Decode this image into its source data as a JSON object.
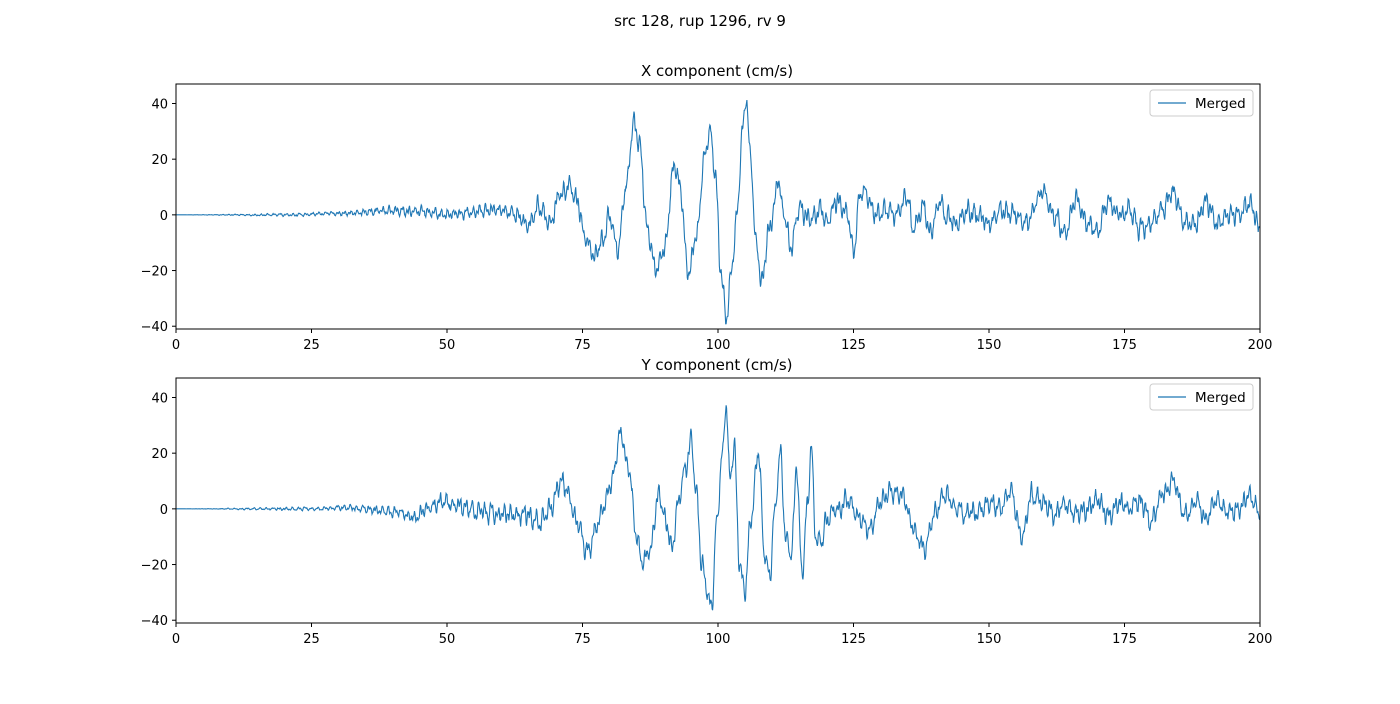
{
  "figure": {
    "suptitle": "src 128, rup 1296, rv 9"
  },
  "style": {
    "line_color": "#1f77b4",
    "axes_color": "#000000",
    "legend_border": "#cccccc",
    "background": "#ffffff"
  },
  "chart_data": [
    {
      "type": "line",
      "title": "X component (cm/s)",
      "xlabel": "",
      "ylabel": "",
      "xlim": [
        0,
        200
      ],
      "ylim": [
        -41,
        47
      ],
      "xticks": [
        0,
        25,
        50,
        75,
        100,
        125,
        150,
        175,
        200
      ],
      "yticks": [
        -40,
        -20,
        0,
        20,
        40
      ],
      "grid": false,
      "legend_position": "upper right",
      "series": [
        {
          "name": "Merged",
          "noise": [
            [
              0,
              0
            ],
            [
              25,
              0.5
            ],
            [
              45,
              1.5
            ],
            [
              60,
              2
            ],
            [
              68,
              3
            ],
            [
              150,
              3
            ],
            [
              200,
              3
            ]
          ],
          "envelope_points": [
            [
              0,
              0
            ],
            [
              20,
              0
            ],
            [
              30,
              0.5
            ],
            [
              40,
              1.5
            ],
            [
              45,
              1
            ],
            [
              50,
              0
            ],
            [
              55,
              1
            ],
            [
              60,
              2
            ],
            [
              63,
              0
            ],
            [
              65,
              -4
            ],
            [
              67,
              2
            ],
            [
              69,
              -2
            ],
            [
              71,
              8
            ],
            [
              72.5,
              10
            ],
            [
              74,
              5
            ],
            [
              75.5,
              -8
            ],
            [
              77,
              -15
            ],
            [
              78.5,
              -10
            ],
            [
              80,
              0
            ],
            [
              81.5,
              -12
            ],
            [
              83,
              10
            ],
            [
              84.5,
              34
            ],
            [
              85.5,
              25
            ],
            [
              87,
              -5
            ],
            [
              88.5,
              -20
            ],
            [
              90,
              -12
            ],
            [
              92,
              18
            ],
            [
              93,
              10
            ],
            [
              94.5,
              -21
            ],
            [
              96,
              -8
            ],
            [
              97.5,
              20
            ],
            [
              98.5,
              30
            ],
            [
              99.5,
              15
            ],
            [
              100.5,
              -20
            ],
            [
              101.5,
              -37
            ],
            [
              102.5,
              -20
            ],
            [
              103.5,
              0
            ],
            [
              104.5,
              30
            ],
            [
              105.2,
              42
            ],
            [
              106,
              20
            ],
            [
              107,
              -10
            ],
            [
              108,
              -24
            ],
            [
              109.5,
              -5
            ],
            [
              110.5,
              5
            ],
            [
              111,
              14
            ],
            [
              112,
              2
            ],
            [
              113.5,
              -12
            ],
            [
              115,
              3
            ],
            [
              117,
              -2
            ],
            [
              119,
              2
            ],
            [
              120,
              -3
            ],
            [
              122,
              5
            ],
            [
              124,
              0
            ],
            [
              125,
              -15
            ],
            [
              126,
              5
            ],
            [
              127,
              9
            ],
            [
              129,
              0
            ],
            [
              131,
              2
            ],
            [
              133,
              0
            ],
            [
              135,
              6
            ],
            [
              136,
              -5
            ],
            [
              138,
              3
            ],
            [
              139,
              -7
            ],
            [
              141,
              5
            ],
            [
              142,
              0
            ],
            [
              144,
              -3
            ],
            [
              146,
              2
            ],
            [
              148,
              0
            ],
            [
              150,
              -3
            ],
            [
              152,
              2
            ],
            [
              155,
              0
            ],
            [
              157,
              -3
            ],
            [
              160,
              8
            ],
            [
              162,
              0
            ],
            [
              164,
              -7
            ],
            [
              166,
              6
            ],
            [
              168,
              -3
            ],
            [
              170,
              -6
            ],
            [
              172,
              5
            ],
            [
              174,
              0
            ],
            [
              176,
              2
            ],
            [
              178,
              -5
            ],
            [
              180,
              -3
            ],
            [
              182,
              2
            ],
            [
              184,
              8
            ],
            [
              186,
              -2
            ],
            [
              188,
              -4
            ],
            [
              190,
              5
            ],
            [
              192,
              -3
            ],
            [
              194,
              0
            ],
            [
              196,
              0
            ],
            [
              198,
              4
            ],
            [
              200,
              -5
            ]
          ]
        }
      ]
    },
    {
      "type": "line",
      "title": "Y component (cm/s)",
      "xlabel": "",
      "ylabel": "",
      "xlim": [
        0,
        200
      ],
      "ylim": [
        -41,
        47
      ],
      "xticks": [
        0,
        25,
        50,
        75,
        100,
        125,
        150,
        175,
        200
      ],
      "yticks": [
        -40,
        -20,
        0,
        20,
        40
      ],
      "grid": false,
      "legend_position": "upper right",
      "series": [
        {
          "name": "Merged",
          "noise": [
            [
              0,
              0
            ],
            [
              25,
              0.5
            ],
            [
              40,
              1.5
            ],
            [
              50,
              2.5
            ],
            [
              68,
              3
            ],
            [
              150,
              3
            ],
            [
              200,
              3
            ]
          ],
          "envelope_points": [
            [
              0,
              0
            ],
            [
              25,
              0
            ],
            [
              30,
              0.5
            ],
            [
              35,
              0
            ],
            [
              40,
              -1
            ],
            [
              44,
              -3
            ],
            [
              46,
              0
            ],
            [
              49,
              3
            ],
            [
              52,
              1
            ],
            [
              56,
              -1
            ],
            [
              60,
              -2
            ],
            [
              64,
              -2
            ],
            [
              67,
              -5
            ],
            [
              69,
              0
            ],
            [
              71,
              10
            ],
            [
              72.5,
              5
            ],
            [
              74,
              -5
            ],
            [
              76,
              -15
            ],
            [
              78,
              -5
            ],
            [
              79,
              2
            ],
            [
              80.5,
              10
            ],
            [
              82,
              27
            ],
            [
              83.5,
              15
            ],
            [
              85,
              -10
            ],
            [
              86,
              -20
            ],
            [
              87.5,
              -15
            ],
            [
              89,
              5
            ],
            [
              90.5,
              -5
            ],
            [
              91.5,
              -14
            ],
            [
              92.5,
              0
            ],
            [
              94,
              15
            ],
            [
              95,
              24
            ],
            [
              96,
              5
            ],
            [
              97,
              -20
            ],
            [
              98,
              -30
            ],
            [
              98.8,
              -36
            ],
            [
              99.8,
              -5
            ],
            [
              100.8,
              20
            ],
            [
              101.5,
              38
            ],
            [
              102.2,
              10
            ],
            [
              103,
              22
            ],
            [
              104,
              -20
            ],
            [
              105,
              -30
            ],
            [
              106,
              -5
            ],
            [
              107.5,
              20
            ],
            [
              108.5,
              -15
            ],
            [
              109.5,
              -25
            ],
            [
              110.5,
              0
            ],
            [
              111.5,
              20
            ],
            [
              112.5,
              -10
            ],
            [
              113.5,
              -17
            ],
            [
              114.5,
              15
            ],
            [
              115.5,
              -23
            ],
            [
              116.5,
              0
            ],
            [
              117.2,
              23
            ],
            [
              118,
              -10
            ],
            [
              119,
              -12
            ],
            [
              120,
              -5
            ],
            [
              122,
              0
            ],
            [
              124,
              3
            ],
            [
              126,
              -3
            ],
            [
              128,
              -7
            ],
            [
              130,
              3
            ],
            [
              132,
              6
            ],
            [
              134,
              5
            ],
            [
              136,
              -7
            ],
            [
              138,
              -14
            ],
            [
              140,
              -2
            ],
            [
              142,
              6
            ],
            [
              144,
              0
            ],
            [
              146,
              -2
            ],
            [
              148,
              -1
            ],
            [
              150,
              2
            ],
            [
              152,
              0
            ],
            [
              154,
              6
            ],
            [
              156,
              -10
            ],
            [
              158,
              5
            ],
            [
              160,
              2
            ],
            [
              162,
              -2
            ],
            [
              164,
              2
            ],
            [
              166,
              -2
            ],
            [
              168,
              0
            ],
            [
              170,
              3
            ],
            [
              172,
              -3
            ],
            [
              174,
              2
            ],
            [
              176,
              0
            ],
            [
              178,
              3
            ],
            [
              180,
              -5
            ],
            [
              182,
              5
            ],
            [
              184,
              10
            ],
            [
              186,
              -2
            ],
            [
              188,
              2
            ],
            [
              190,
              -3
            ],
            [
              192,
              3
            ],
            [
              194,
              0
            ],
            [
              196,
              -1
            ],
            [
              198,
              5
            ],
            [
              200,
              -2
            ]
          ]
        }
      ]
    }
  ]
}
